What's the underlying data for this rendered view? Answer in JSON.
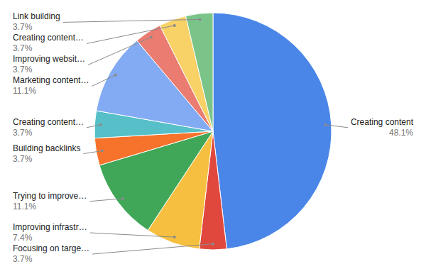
{
  "chart_data": {
    "type": "pie",
    "categories": [
      "Creating content",
      "Focusing on targe…",
      "Improving infrastr…",
      "Trying to improve…",
      "Building backlinks",
      "Creating content…",
      "Marketing content…",
      "Improving websit…",
      "Creating content…",
      "Link building"
    ],
    "values": [
      48.1,
      3.7,
      7.4,
      11.1,
      3.7,
      3.7,
      11.1,
      3.7,
      3.7,
      3.7
    ],
    "value_labels": [
      "48.1%",
      "3.7%",
      "7.4%",
      "11.1%",
      "3.7%",
      "3.7%",
      "11.1%",
      "3.7%",
      "3.7%",
      "3.7%"
    ],
    "colors": [
      "#4a86e8",
      "#e0483e",
      "#f6bf3f",
      "#3fa757",
      "#f7722a",
      "#56bfc8",
      "#83abf3",
      "#ea7c72",
      "#f8d167",
      "#7bc489"
    ],
    "data_labels": true
  }
}
